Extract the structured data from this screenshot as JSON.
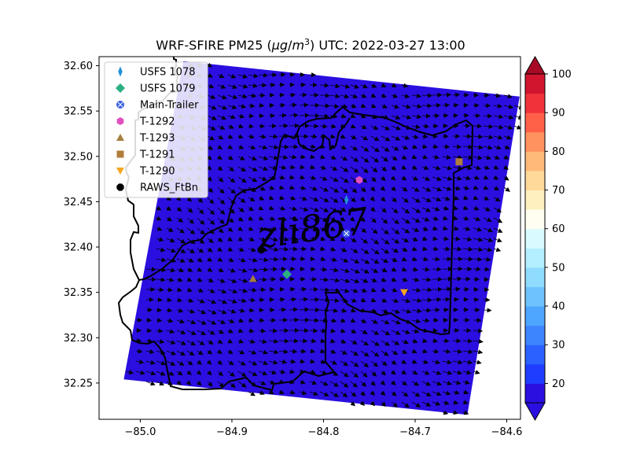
{
  "chart_data": {
    "type": "map",
    "title": "WRF-SFIRE PM25 (μg/m³) UTC: 2022-03-27 13:00",
    "title_parts": {
      "pre": "WRF-SFIRE PM25 (",
      "unit_mu": "μg",
      "unit_slash": "/",
      "unit_m": "m",
      "unit_exp": "3",
      "post": ") UTC: 2022-03-27 13:00"
    },
    "xlim": [
      -85.045,
      -84.585
    ],
    "ylim": [
      32.21,
      32.61
    ],
    "x_ticks": [
      -85.0,
      -84.9,
      -84.8,
      -84.7,
      -84.6
    ],
    "x_tick_labels": [
      "−85.0",
      "−84.9",
      "−84.8",
      "−84.7",
      "−84.6"
    ],
    "y_ticks": [
      32.25,
      32.3,
      32.35,
      32.4,
      32.45,
      32.5,
      32.55,
      32.6
    ],
    "y_tick_labels": [
      "32.25",
      "32.30",
      "32.35",
      "32.40",
      "32.45",
      "32.50",
      "32.55",
      "32.60"
    ],
    "field_color": "#2a0fe0",
    "field_value_approx": 18,
    "field_corners_lonlat": [
      [
        -84.953,
        32.605
      ],
      [
        -84.586,
        32.566
      ],
      [
        -84.643,
        32.215
      ],
      [
        -85.018,
        32.254
      ]
    ],
    "wind_vectors": "dense field of black arrows over domain",
    "stations": [
      {
        "name": "USFS 1078",
        "lon": -84.775,
        "lat": 32.452,
        "marker": "thin_diamond",
        "color": "#1f8fd8"
      },
      {
        "name": "USFS 1079",
        "lon": -84.84,
        "lat": 32.37,
        "marker": "diamond",
        "color": "#2bb07f"
      },
      {
        "name": "Main-Trailer",
        "lon": -84.775,
        "lat": 32.415,
        "marker": "circle-x",
        "color": "#3a5fe0"
      },
      {
        "name": "T-1292",
        "lon": -84.761,
        "lat": 32.474,
        "marker": "hexagon",
        "color": "#e04fc0"
      },
      {
        "name": "T-1293",
        "lon": -84.877,
        "lat": 32.365,
        "marker": "triangle-up",
        "color": "#a4803c"
      },
      {
        "name": "T-1291",
        "lon": -84.652,
        "lat": 32.494,
        "marker": "square",
        "color": "#b07d3a"
      },
      {
        "name": "T-1290",
        "lon": -84.712,
        "lat": 32.35,
        "marker": "triangle-down",
        "color": "#f5a623"
      },
      {
        "name": "RAWS_FtBn",
        "lon": -84.868,
        "lat": 32.397,
        "marker": "octagon",
        "color": "#000000"
      }
    ],
    "legend_location": "upper left",
    "colorbar": {
      "levels": [
        15,
        20,
        25,
        30,
        35,
        40,
        45,
        50,
        55,
        60,
        65,
        70,
        75,
        80,
        85,
        90,
        95,
        100
      ],
      "tick_values": [
        20,
        30,
        40,
        50,
        60,
        70,
        80,
        90,
        100
      ],
      "tick_labels": [
        "20",
        "30",
        "40",
        "50",
        "60",
        "70",
        "80",
        "90",
        "100"
      ],
      "colors": [
        "#2a0fe0",
        "#1f3dff",
        "#2b62ff",
        "#3d84ff",
        "#4fa6ff",
        "#6ec3ff",
        "#8fdcff",
        "#b3efff",
        "#d9fbff",
        "#fffef0",
        "#fff0c0",
        "#ffd99a",
        "#ffba7a",
        "#ff925f",
        "#ff6048",
        "#f0323a",
        "#d1152e",
        "#a80a25"
      ],
      "extend": "both"
    },
    "watermark": "zli867"
  }
}
